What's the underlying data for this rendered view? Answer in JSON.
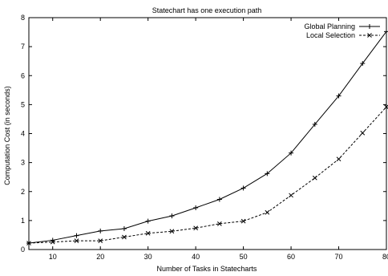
{
  "chart_data": {
    "type": "line",
    "title": "Statechart has one execution path",
    "xlabel": "Number of Tasks in Statecharts",
    "ylabel": "Computation Cost (in seconds)",
    "xlim": [
      5,
      80
    ],
    "ylim": [
      0,
      8
    ],
    "xticks": [
      10,
      20,
      30,
      40,
      50,
      60,
      70,
      80
    ],
    "yticks": [
      0,
      1,
      2,
      3,
      4,
      5,
      6,
      7,
      8
    ],
    "grid": false,
    "legend_position": "top-right",
    "x": [
      5,
      10,
      15,
      20,
      25,
      30,
      35,
      40,
      45,
      50,
      55,
      60,
      65,
      70,
      75,
      80
    ],
    "series": [
      {
        "name": "Global Planning",
        "marker": "plus",
        "line": "solid",
        "values": [
          0.22,
          0.32,
          0.48,
          0.64,
          0.72,
          0.98,
          1.16,
          1.44,
          1.73,
          2.12,
          2.62,
          3.33,
          4.32,
          5.3,
          6.42,
          7.52
        ]
      },
      {
        "name": "Local Selection",
        "marker": "cross",
        "line": "dashed",
        "values": [
          0.22,
          0.26,
          0.3,
          0.3,
          0.43,
          0.56,
          0.63,
          0.74,
          0.89,
          0.98,
          1.28,
          1.87,
          2.47,
          3.12,
          4.02,
          4.92
        ]
      }
    ]
  }
}
